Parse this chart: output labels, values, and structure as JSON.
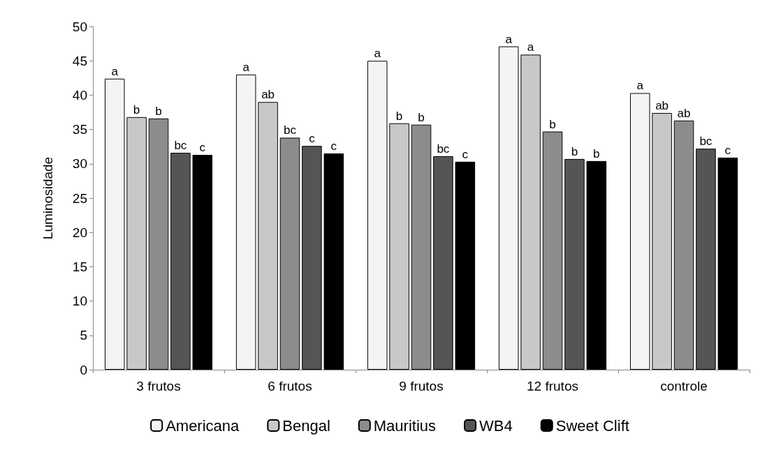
{
  "chart_data": {
    "type": "bar",
    "ylabel": "Luminosidade",
    "categories": [
      "3 frutos",
      "6 frutos",
      "9 frutos",
      "12 frutos",
      "controle"
    ],
    "series": [
      {
        "name": "Americana",
        "color": "#f4f4f4",
        "values": [
          42.4,
          43.0,
          45.0,
          47.1,
          40.3
        ],
        "value_labels": [
          "a",
          "a",
          "a",
          "a",
          "a"
        ]
      },
      {
        "name": "Bengal",
        "color": "#c8c8c8",
        "values": [
          36.8,
          39.0,
          35.9,
          45.9,
          37.4
        ],
        "value_labels": [
          "b",
          "ab",
          "b",
          "a",
          "ab"
        ]
      },
      {
        "name": "Mauritius",
        "color": "#8c8c8c",
        "values": [
          36.6,
          33.8,
          35.7,
          34.7,
          36.3
        ],
        "value_labels": [
          "b",
          "bc",
          "b",
          "b",
          "ab"
        ]
      },
      {
        "name": "WB4",
        "color": "#555555",
        "values": [
          31.6,
          32.6,
          31.1,
          30.7,
          32.2
        ],
        "value_labels": [
          "bc",
          "c",
          "bc",
          "b",
          "bc"
        ]
      },
      {
        "name": "Sweet Clift",
        "color": "#000000",
        "values": [
          31.3,
          31.5,
          30.3,
          30.4,
          30.9
        ],
        "value_labels": [
          "c",
          "c",
          "c",
          "b",
          "c"
        ]
      }
    ],
    "ylim": [
      0,
      50
    ],
    "yticks": [
      0,
      5,
      10,
      15,
      20,
      25,
      30,
      35,
      40,
      45,
      50
    ],
    "grid": false,
    "legend": "bottom"
  }
}
